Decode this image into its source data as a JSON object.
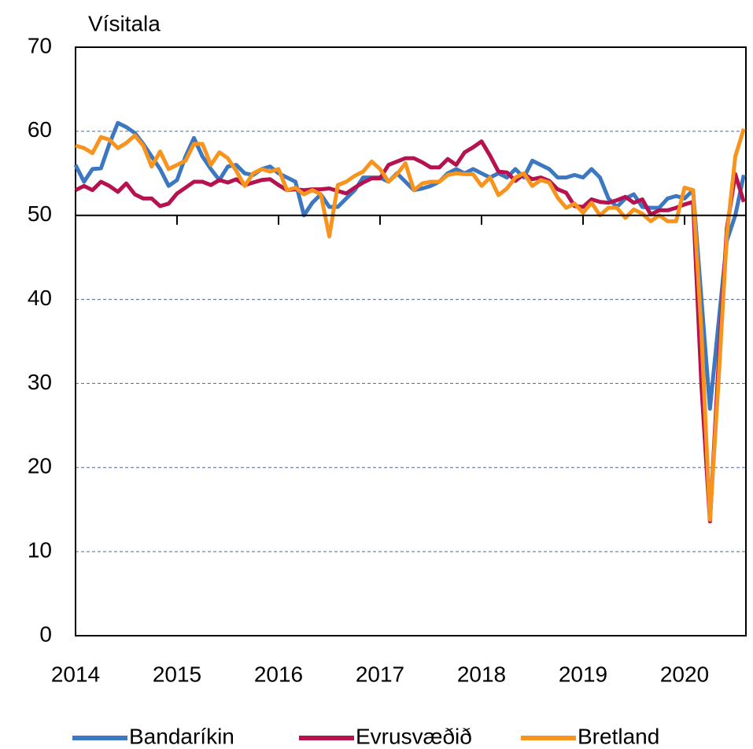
{
  "chart_data": {
    "type": "line",
    "y_label": "Vísitala",
    "categories": [
      "2014",
      null,
      null,
      null,
      null,
      null,
      null,
      null,
      null,
      null,
      null,
      null,
      "2015",
      null,
      null,
      null,
      null,
      null,
      null,
      null,
      null,
      null,
      null,
      null,
      "2016",
      null,
      null,
      null,
      null,
      null,
      null,
      null,
      null,
      null,
      null,
      null,
      "2017",
      null,
      null,
      null,
      null,
      null,
      null,
      null,
      null,
      null,
      null,
      null,
      "2018",
      null,
      null,
      null,
      null,
      null,
      null,
      null,
      null,
      null,
      null,
      null,
      "2019",
      null,
      null,
      null,
      null,
      null,
      null,
      null,
      null,
      null,
      null,
      null,
      "2020",
      null,
      null,
      null,
      null,
      null,
      null,
      null
    ],
    "series": [
      {
        "name": "Bandaríkin",
        "color": "#3b78c1",
        "values": [
          56,
          54,
          55.5,
          55.6,
          58.5,
          61,
          60.5,
          59.8,
          58.5,
          57,
          55.5,
          53.5,
          54.2,
          57,
          59.2,
          57,
          55.5,
          54.2,
          55.8,
          56,
          55,
          54.8,
          55.5,
          55.8,
          55,
          54.5,
          54,
          50,
          51.5,
          52.5,
          51,
          51,
          52,
          53,
          54.5,
          54.5,
          54.5,
          54,
          55,
          54,
          53,
          53.2,
          53.5,
          54,
          55,
          55.5,
          55,
          55.5,
          55,
          54.5,
          55,
          54.5,
          55.5,
          54.5,
          56.5,
          56,
          55.5,
          54.5,
          54.5,
          54.8,
          54.5,
          55.5,
          54.5,
          52,
          51,
          52,
          52.5,
          51,
          50.9,
          50.9,
          52,
          52.3,
          52,
          53,
          40,
          27,
          37,
          47,
          50,
          54.8
        ]
      },
      {
        "name": "Evrusvæðið",
        "color": "#b5124f",
        "values": [
          53,
          53.5,
          53,
          54,
          53.5,
          52.8,
          53.8,
          52.5,
          52,
          52,
          51.1,
          51.4,
          52.6,
          53.3,
          54,
          54,
          53.6,
          54.2,
          53.9,
          54.3,
          53.6,
          53.9,
          54.2,
          54.3,
          53.6,
          53,
          53.1,
          53,
          53.1,
          53.1,
          53.2,
          52.9,
          52.6,
          53.3,
          53.9,
          54.4,
          54.4,
          56,
          56.4,
          56.8,
          56.8,
          56.3,
          55.7,
          55.7,
          56.7,
          56,
          57.5,
          58.1,
          58.8,
          57.1,
          55.2,
          55.1,
          54.1,
          54.9,
          54.3,
          54.5,
          54.1,
          53.1,
          52.7,
          51.1,
          51,
          51.9,
          51.6,
          51.5,
          51.8,
          52.2,
          51.5,
          51.9,
          50.1,
          50.6,
          50.6,
          50.9,
          51.3,
          51.6,
          29.7,
          13.6,
          31.9,
          48.5,
          54.9,
          51.6
        ]
      },
      {
        "name": "Bretland",
        "color": "#f7941d",
        "values": [
          58.3,
          58,
          57.4,
          59.3,
          59,
          58,
          58.6,
          59.5,
          58.3,
          55.8,
          57.6,
          55.5,
          56,
          56.5,
          58.5,
          58.5,
          56,
          57.5,
          56.8,
          55.3,
          53.5,
          55,
          55.5,
          55.2,
          55.5,
          53,
          53.3,
          52.5,
          53,
          52.5,
          47.5,
          53.6,
          54,
          54.7,
          55.2,
          56.4,
          55.5,
          54,
          54.9,
          56.2,
          53,
          53.8,
          54,
          54,
          54.8,
          55,
          54.9,
          54.9,
          53.5,
          54.5,
          52.4,
          53.2,
          54.5,
          55,
          53.5,
          54.2,
          53.9,
          52.1,
          50.9,
          51.4,
          50.3,
          51.5,
          50,
          50.9,
          50.9,
          49.7,
          50.7,
          50.2,
          49.3,
          50,
          49.3,
          49.3,
          53.3,
          53,
          36,
          13.8,
          30,
          47.7,
          57,
          60.3
        ]
      }
    ],
    "ylim": [
      0,
      70
    ],
    "yticks": [
      0,
      10,
      20,
      30,
      40,
      50,
      60,
      70
    ],
    "grid": true,
    "hline": 50,
    "legend": "bottom"
  }
}
